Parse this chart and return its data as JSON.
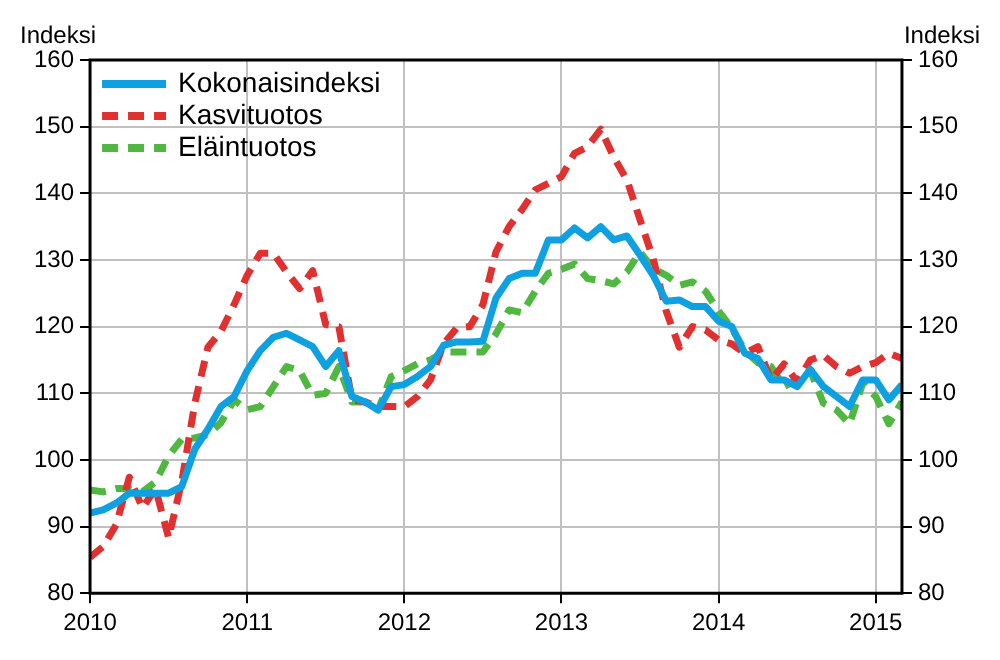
{
  "chart_data": {
    "type": "line",
    "ylabel": "Indeksi",
    "y2label": "Indeksi",
    "x": [
      "2010-01",
      "2010-02",
      "2010-03",
      "2010-04",
      "2010-05",
      "2010-06",
      "2010-07",
      "2010-08",
      "2010-09",
      "2010-10",
      "2010-11",
      "2010-12",
      "2011-01",
      "2011-02",
      "2011-03",
      "2011-04",
      "2011-05",
      "2011-06",
      "2011-07",
      "2011-08",
      "2011-09",
      "2011-10",
      "2011-11",
      "2011-12",
      "2012-01",
      "2012-02",
      "2012-03",
      "2012-04",
      "2012-05",
      "2012-06",
      "2012-07",
      "2012-08",
      "2012-09",
      "2012-10",
      "2012-11",
      "2012-12",
      "2013-01",
      "2013-02",
      "2013-03",
      "2013-04",
      "2013-05",
      "2013-06",
      "2013-07",
      "2013-08",
      "2013-09",
      "2013-10",
      "2013-11",
      "2013-12",
      "2014-01",
      "2014-02",
      "2014-03",
      "2014-04",
      "2014-05",
      "2014-06",
      "2014-07",
      "2014-08",
      "2014-09",
      "2014-10",
      "2014-11",
      "2014-12",
      "2015-01",
      "2015-02",
      "2015-03"
    ],
    "series": [
      {
        "name": "Kokonaisindeksi",
        "color": "#0ea0e0",
        "line_style": "solid",
        "values": [
          92,
          92.5,
          93.5,
          95,
          95,
          95,
          95,
          96,
          101.6,
          104.6,
          108,
          109.5,
          113.4,
          116.4,
          118.4,
          119,
          118,
          117,
          114,
          116.4,
          109.5,
          108.7,
          107.5,
          111,
          111.3,
          112.5,
          114,
          117.2,
          117.7,
          117.7,
          117.8,
          124.3,
          127.2,
          128,
          128,
          133,
          133,
          134.8,
          133.3,
          135,
          133,
          133.6,
          130.7,
          127.7,
          123.8,
          124,
          123,
          123,
          120.8,
          120,
          116,
          115.2,
          112,
          112,
          111,
          113.6,
          111,
          109.5,
          108,
          112,
          112,
          109,
          111.3
        ]
      },
      {
        "name": "Kasvituotos",
        "color": "#e03030",
        "line_style": "dashed",
        "values": [
          85.4,
          87,
          90.3,
          97.4,
          92.8,
          95.7,
          88.3,
          96.7,
          108.5,
          116.9,
          119.3,
          123.3,
          127.7,
          131,
          131,
          128.2,
          125.7,
          128.4,
          120.3,
          120,
          109,
          108.7,
          108,
          108,
          108,
          109.5,
          112,
          117.4,
          119.8,
          120,
          123.3,
          131.2,
          135,
          137.6,
          140.5,
          141.5,
          142.5,
          146,
          147,
          149.6,
          145.4,
          142,
          136,
          130.2,
          122.3,
          116.9,
          120,
          119.5,
          118,
          117.4,
          116,
          117,
          112,
          114.4,
          111.7,
          115,
          115.7,
          114,
          113,
          114,
          114.6,
          116,
          115.2
        ]
      },
      {
        "name": "Eläintuotos",
        "color": "#50b840",
        "line_style": "dashed",
        "values": [
          95.5,
          95.2,
          95.7,
          95.7,
          95.2,
          96.7,
          100.6,
          103.1,
          103.3,
          103.8,
          105.6,
          109,
          107.5,
          108,
          111,
          114,
          113.4,
          109.7,
          110,
          114,
          108.7,
          108.7,
          107.5,
          112.5,
          113.4,
          114.4,
          115,
          116.2,
          116.2,
          116.2,
          116.2,
          118.9,
          122.5,
          122.1,
          125.3,
          128,
          128.6,
          129.4,
          127.2,
          126.9,
          126.4,
          128.2,
          131.2,
          128.7,
          127.7,
          126.2,
          126.7,
          125.3,
          122.3,
          119.8,
          116.4,
          114.6,
          114,
          111,
          112,
          113.4,
          108.5,
          107.5,
          105.4,
          111.5,
          109.5,
          105.4,
          108.7
        ]
      }
    ],
    "xlim": [
      "2010-01",
      "2015-03"
    ],
    "xticks": [
      {
        "value": "2010-01",
        "label": "2010"
      },
      {
        "value": "2011-01",
        "label": "2011"
      },
      {
        "value": "2012-01",
        "label": "2012"
      },
      {
        "value": "2013-01",
        "label": "2013"
      },
      {
        "value": "2014-01",
        "label": "2014"
      },
      {
        "value": "2015-01",
        "label": "2015"
      }
    ],
    "ylim": [
      80,
      160
    ],
    "yticks": [
      80,
      90,
      100,
      110,
      120,
      130,
      140,
      150,
      160
    ],
    "y2lim": [
      80,
      160
    ],
    "y2ticks": [
      80,
      90,
      100,
      110,
      120,
      130,
      140,
      150,
      160
    ],
    "grid": true,
    "legend": "top left",
    "marker": "none"
  }
}
